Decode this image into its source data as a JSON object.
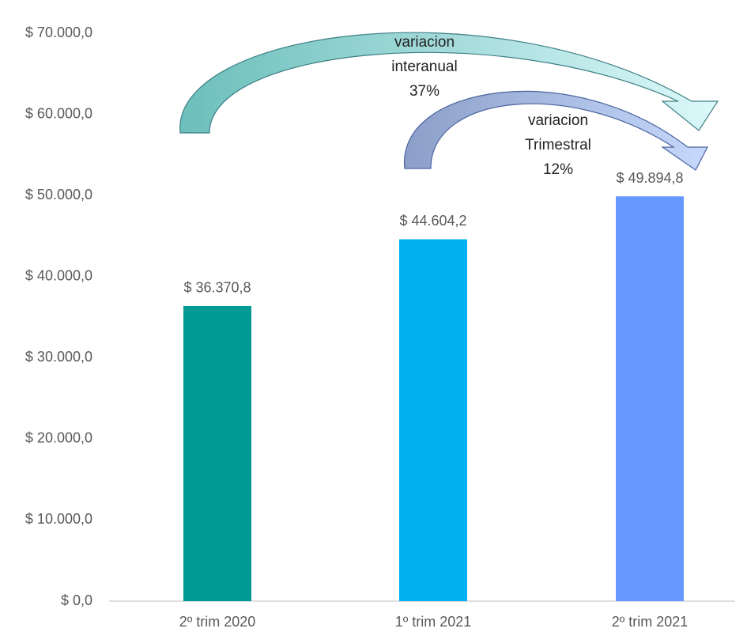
{
  "chart_data": {
    "type": "bar",
    "categories": [
      "2º trim 2020",
      "1º trim 2021",
      "2º trim 2021"
    ],
    "values": [
      36370.8,
      44604.2,
      49894.8
    ],
    "value_labels": [
      "$ 36.370,8",
      "$ 44.604,2",
      "$ 49.894,8"
    ],
    "colors": [
      "#009a94",
      "#00b0f0",
      "#6699ff"
    ],
    "ylim": [
      0,
      70000
    ],
    "yticks": [
      {
        "value": 0,
        "label": "$ 0,0"
      },
      {
        "value": 10000,
        "label": "$ 10.000,0"
      },
      {
        "value": 20000,
        "label": "$ 20.000,0"
      },
      {
        "value": 30000,
        "label": "$ 30.000,0"
      },
      {
        "value": 40000,
        "label": "$ 40.000,0"
      },
      {
        "value": 50000,
        "label": "$ 50.000,0"
      },
      {
        "value": 60000,
        "label": "$ 60.000,0"
      },
      {
        "value": 70000,
        "label": "$ 70.000,0"
      }
    ],
    "grid": false,
    "annotations": [
      {
        "lines": [
          "variacion",
          "interanual",
          "37%"
        ]
      },
      {
        "lines": [
          "variacion",
          "Trimestral",
          "12%"
        ]
      }
    ]
  }
}
